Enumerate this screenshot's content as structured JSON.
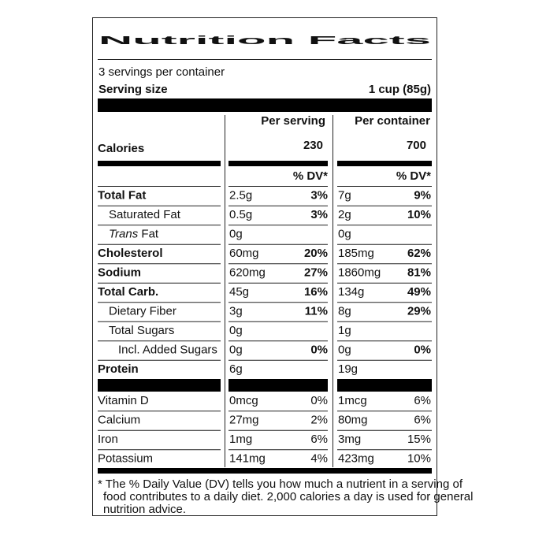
{
  "title": "Nutrition Facts",
  "servings": "3 servings per container",
  "serving_size": {
    "label": "Serving size",
    "value": "1 cup (85g)"
  },
  "columns": [
    "Per serving",
    "Per container"
  ],
  "calories": {
    "label": "Calories",
    "values": [
      "230",
      "700"
    ]
  },
  "dv_header": "% DV*",
  "nutrients": [
    {
      "name": "Total Fat",
      "level": 0,
      "bold": true,
      "serving": [
        "2.5g",
        "3%"
      ],
      "container": [
        "7g",
        "9%"
      ]
    },
    {
      "name": "Saturated Fat",
      "level": 1,
      "bold": false,
      "serving": [
        "0.5g",
        "3%"
      ],
      "container": [
        "2g",
        "10%"
      ]
    },
    {
      "name_italic": "Trans",
      "name": "Fat",
      "level": 1,
      "bold": false,
      "serving": [
        "0g",
        null
      ],
      "container": [
        "0g",
        null
      ]
    },
    {
      "name": "Cholesterol",
      "level": 0,
      "bold": true,
      "serving": [
        "60mg",
        "20%"
      ],
      "container": [
        "185mg",
        "62%"
      ]
    },
    {
      "name": "Sodium",
      "level": 0,
      "bold": true,
      "serving": [
        "620mg",
        "27%"
      ],
      "container": [
        "1860mg",
        "81%"
      ]
    },
    {
      "name": "Total Carb.",
      "level": 0,
      "bold": true,
      "serving": [
        "45g",
        "16%"
      ],
      "container": [
        "134g",
        "49%"
      ]
    },
    {
      "name": "Dietary Fiber",
      "level": 1,
      "bold": false,
      "serving": [
        "3g",
        "11%"
      ],
      "container": [
        "8g",
        "29%"
      ]
    },
    {
      "name": "Total Sugars",
      "level": 1,
      "bold": false,
      "serving": [
        "0g",
        null
      ],
      "container": [
        "1g",
        null
      ]
    },
    {
      "name": "Incl. Added Sugars",
      "level": 2,
      "bold": false,
      "serving": [
        "0g",
        "0%"
      ],
      "container": [
        "0g",
        "0%"
      ]
    },
    {
      "name": "Protein",
      "level": 0,
      "bold": true,
      "serving": [
        "6g",
        null
      ],
      "container": [
        "19g",
        null
      ]
    }
  ],
  "vitamins": [
    {
      "name": "Vitamin D",
      "serving": [
        "0mcg",
        "0%"
      ],
      "container": [
        "1mcg",
        "6%"
      ]
    },
    {
      "name": "Calcium",
      "serving": [
        "27mg",
        "2%"
      ],
      "container": [
        "80mg",
        "6%"
      ]
    },
    {
      "name": "Iron",
      "serving": [
        "1mg",
        "6%"
      ],
      "container": [
        "3mg",
        "15%"
      ]
    },
    {
      "name": "Potassium",
      "serving": [
        "141mg",
        "4%"
      ],
      "container": [
        "423mg",
        "10%"
      ]
    }
  ],
  "footnote": [
    "* The % Daily Value (DV) tells you how much a nutrient in a serving of",
    "food contributes to a daily diet. 2,000 calories a day is used for general",
    "nutrition advice."
  ]
}
